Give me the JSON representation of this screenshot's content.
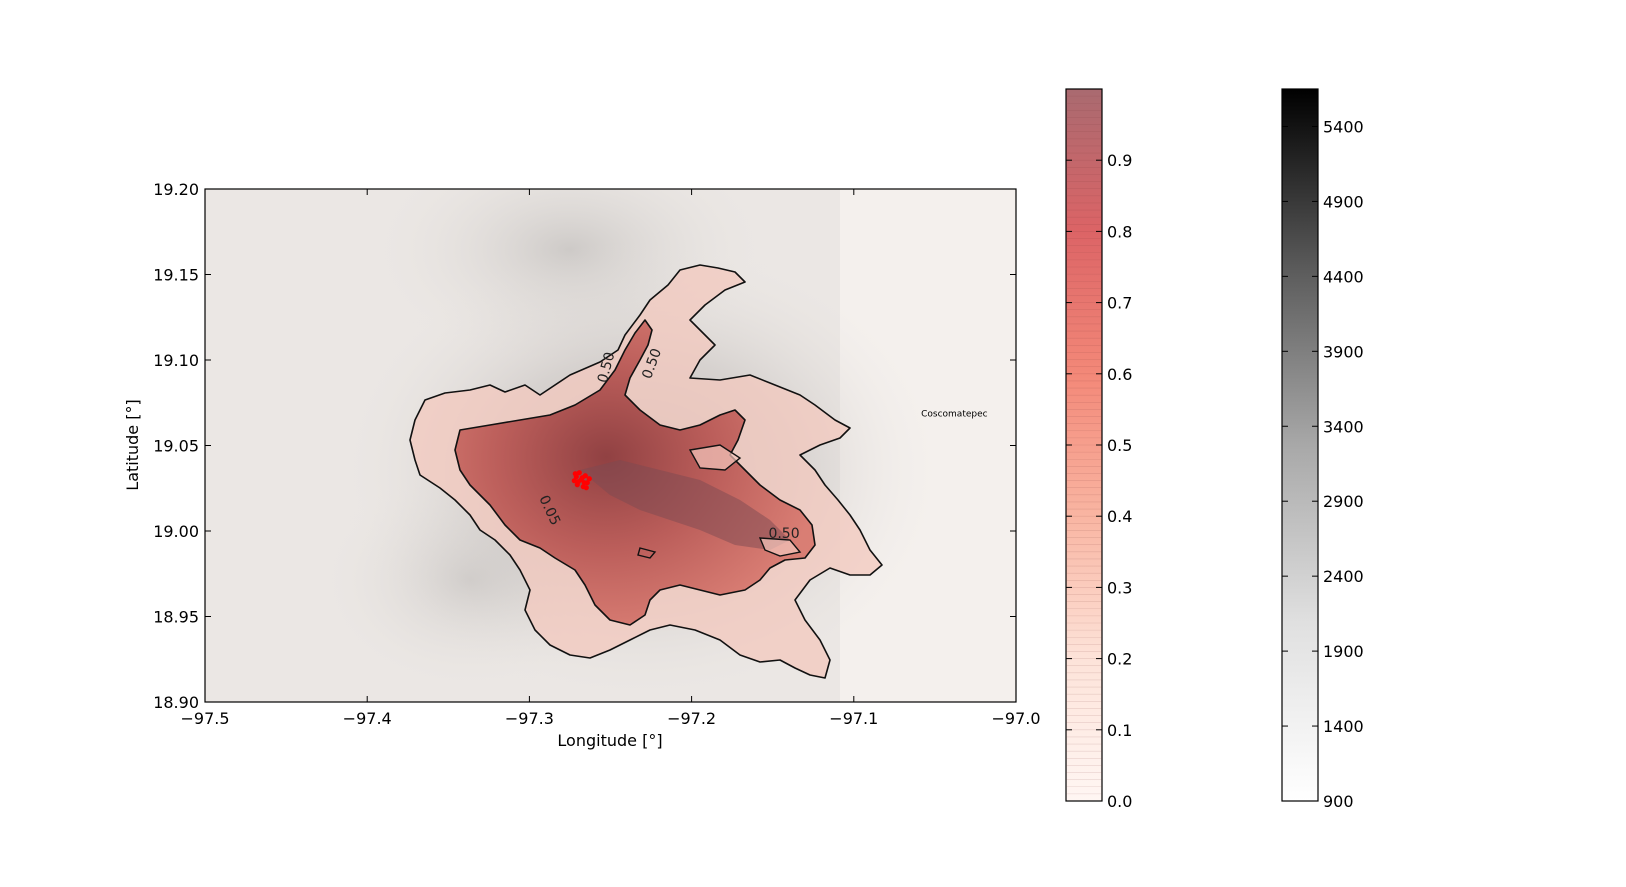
{
  "chart_data": {
    "type": "heatmap",
    "title": "",
    "xlabel": "Longitude [°]",
    "ylabel": "Latitude [°]",
    "xlim": [
      -97.5,
      -97.0
    ],
    "ylim": [
      18.9,
      19.2
    ],
    "x_ticks": [
      "−97.5",
      "−97.4",
      "−97.3",
      "−97.2",
      "−97.1",
      "−97.0"
    ],
    "y_ticks": [
      "18.90",
      "18.95",
      "19.00",
      "19.05",
      "19.10",
      "19.15",
      "19.20"
    ],
    "vent": {
      "lon": -97.268,
      "lat": 19.03,
      "color": "#ff0000"
    },
    "annotations": [
      {
        "text": "Coscomatepec",
        "lon": -97.038,
        "lat": 19.067
      }
    ],
    "contour_labels": [
      {
        "text": "0.50",
        "lon": -97.25,
        "lat": 19.095,
        "rotate": -75
      },
      {
        "text": "0.50",
        "lon": -97.222,
        "lat": 19.097,
        "rotate": -70
      },
      {
        "text": "0.05",
        "lon": -97.29,
        "lat": 19.011,
        "rotate": 65
      },
      {
        "text": "0.50",
        "lon": -97.143,
        "lat": 18.996,
        "rotate": 0
      }
    ],
    "colorbars": [
      {
        "name": "",
        "colormap": "Reds (alpha)",
        "range": [
          0.0,
          1.0
        ],
        "ticks": [
          "0.0",
          "0.1",
          "0.2",
          "0.3",
          "0.4",
          "0.5",
          "0.6",
          "0.7",
          "0.8",
          "0.9"
        ],
        "tick_values": [
          0.0,
          0.1,
          0.2,
          0.3,
          0.4,
          0.5,
          0.6,
          0.7,
          0.8,
          0.9
        ]
      },
      {
        "name": "",
        "colormap": "Greys",
        "range": [
          900,
          5650
        ],
        "ticks": [
          "900",
          "1400",
          "1900",
          "2400",
          "2900",
          "3400",
          "3900",
          "4400",
          "4900",
          "5400"
        ],
        "tick_values": [
          900,
          1400,
          1900,
          2400,
          2900,
          3400,
          3900,
          4400,
          4900,
          5400
        ]
      }
    ],
    "grid": false,
    "legend": "none"
  }
}
